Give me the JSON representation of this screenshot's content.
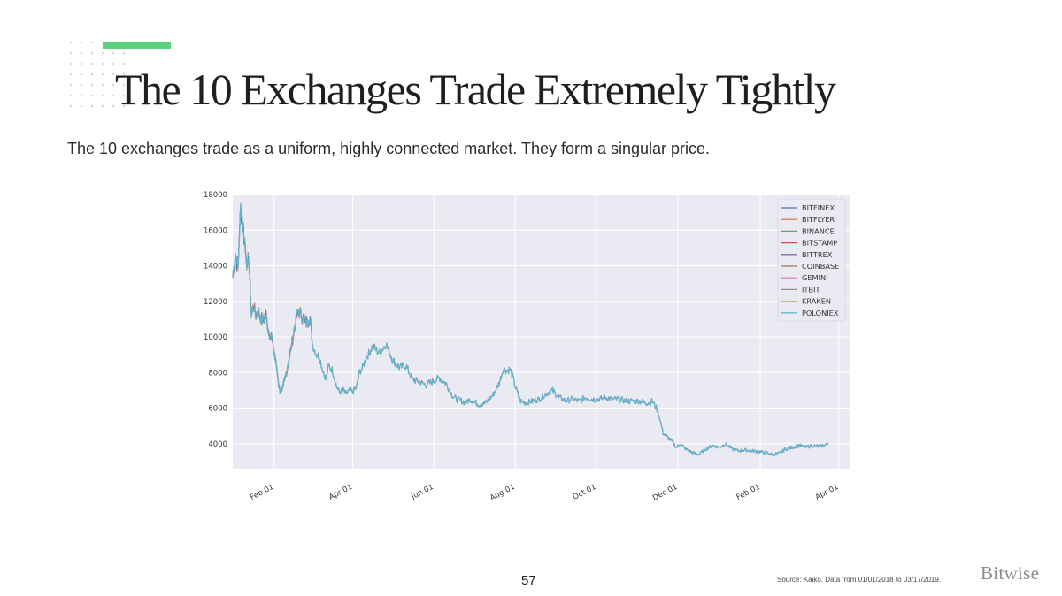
{
  "slide": {
    "title": "The 10 Exchanges Trade Extremely Tightly",
    "subtitle": "The 10 exchanges trade as a uniform, highly connected market. They form a singular price.",
    "page_number": "57",
    "source": "Source: Kaiko. Data from 01/01/2018 to 03/17/2019.",
    "brand": "Bitwise",
    "accent_color": "#5bd17e"
  },
  "chart_data": {
    "type": "line",
    "title": "",
    "xlabel": "",
    "ylabel": "",
    "ylim": [
      2600,
      18000
    ],
    "yticks": [
      4000,
      6000,
      8000,
      10000,
      12000,
      14000,
      16000,
      18000
    ],
    "xlim": [
      0,
      447
    ],
    "xticks": [
      {
        "label": "Feb 01",
        "day": 31
      },
      {
        "label": "Apr 01",
        "day": 90
      },
      {
        "label": "Jun 01",
        "day": 151
      },
      {
        "label": "Aug 01",
        "day": 212
      },
      {
        "label": "Oct 01",
        "day": 273
      },
      {
        "label": "Dec 01",
        "day": 334
      },
      {
        "label": "Feb 01",
        "day": 396
      },
      {
        "label": "Apr 01",
        "day": 455
      }
    ],
    "legend_position": "top-right",
    "grid": true,
    "series_names": [
      "BITFINEX",
      "BITFLYER",
      "BINANCE",
      "BITSTAMP",
      "BITTREX",
      "COINBASE",
      "GEMINI",
      "ITBIT",
      "KRAKEN",
      "POLONIEX"
    ],
    "series_colors": [
      "#4c72b0",
      "#dd8452",
      "#55a868",
      "#c44e52",
      "#8172b3",
      "#937860",
      "#da8bc3",
      "#8c8c8c",
      "#ccb974",
      "#64b5cd"
    ],
    "x_days": [
      0,
      2,
      4,
      5,
      6,
      7,
      9,
      11,
      12,
      14,
      16,
      17,
      19,
      22,
      25,
      27,
      29,
      31,
      33,
      35,
      37,
      40,
      42,
      45,
      48,
      50,
      55,
      58,
      60,
      63,
      65,
      67,
      70,
      72,
      75,
      78,
      80,
      83,
      85,
      88,
      90,
      93,
      95,
      97,
      100,
      103,
      105,
      110,
      115,
      120,
      125,
      130,
      135,
      140,
      145,
      150,
      155,
      160,
      165,
      168,
      172,
      175,
      178,
      180,
      185,
      190,
      195,
      200,
      203,
      206,
      208,
      210,
      213,
      216,
      220,
      225,
      230,
      235,
      240,
      245,
      250,
      255,
      260,
      265,
      270,
      275,
      280,
      285,
      290,
      295,
      300,
      305,
      310,
      313,
      315,
      318,
      320,
      323,
      326,
      330,
      333,
      336,
      340,
      345,
      350,
      355,
      360,
      365,
      370,
      375,
      380,
      385,
      390,
      395,
      400,
      405,
      410,
      415,
      420,
      425,
      430,
      435,
      440,
      443,
      447
    ],
    "values": [
      13400,
      14600,
      13800,
      15900,
      17100,
      16700,
      15300,
      13900,
      14500,
      11300,
      11800,
      11200,
      11400,
      10900,
      11200,
      10300,
      10000,
      9200,
      8200,
      7100,
      6900,
      7900,
      8700,
      9900,
      11200,
      11400,
      10800,
      11100,
      9500,
      9000,
      8900,
      8300,
      7600,
      8400,
      8100,
      7200,
      6900,
      7000,
      6800,
      7000,
      6900,
      7200,
      8000,
      8200,
      8800,
      9200,
      9500,
      9100,
      9600,
      8700,
      8300,
      8400,
      7600,
      7500,
      7300,
      7500,
      7700,
      7400,
      6700,
      6500,
      6400,
      6300,
      6500,
      6400,
      6200,
      6300,
      6700,
      7400,
      8200,
      8100,
      8200,
      7800,
      7000,
      6400,
      6300,
      6400,
      6500,
      6800,
      7000,
      6600,
      6400,
      6500,
      6400,
      6600,
      6500,
      6500,
      6600,
      6500,
      6500,
      6400,
      6400,
      6400,
      6300,
      6300,
      6400,
      6000,
      5600,
      4600,
      4400,
      4100,
      3800,
      4000,
      3700,
      3500,
      3400,
      3700,
      3900,
      3800,
      4000,
      3700,
      3600,
      3650,
      3600,
      3550,
      3500,
      3400,
      3450,
      3700,
      3800,
      3900,
      3800,
      3900,
      3850,
      3900,
      4000
    ]
  }
}
